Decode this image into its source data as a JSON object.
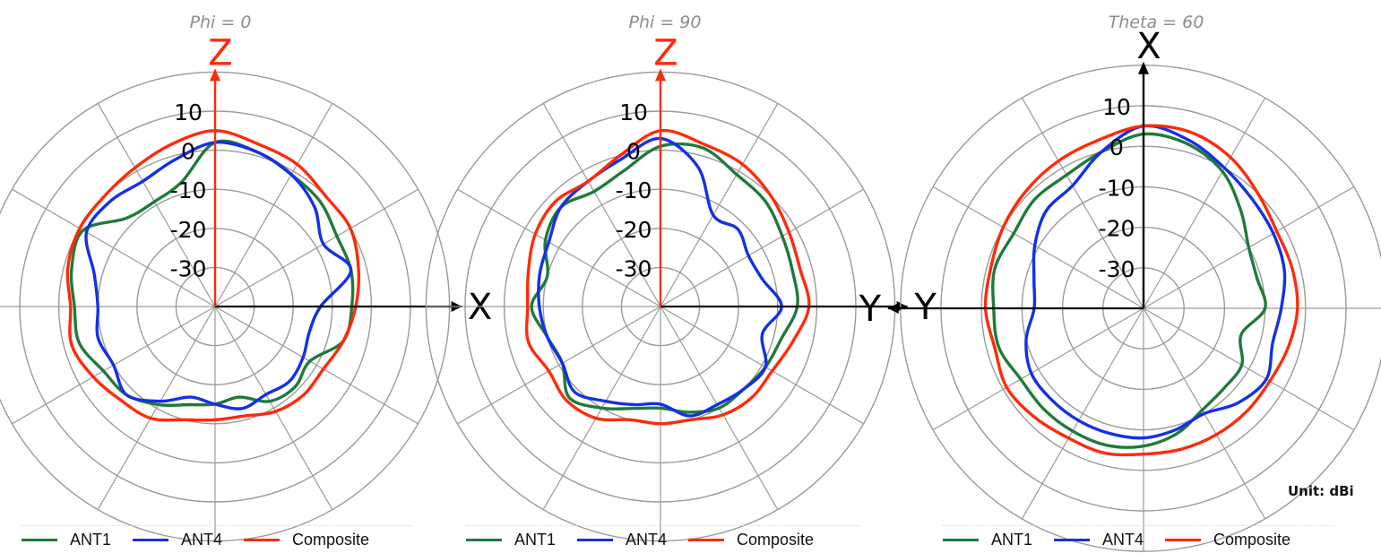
{
  "unit_label": "Unit: dBi",
  "colors": {
    "ANT1": "#1f7a3a",
    "ANT4": "#1430e6",
    "Composite": "#ff2a0a",
    "grid": "#9a9a9a",
    "axis": "#000000",
    "z_axis": "#ff2a0a",
    "title": "#8c8c8c"
  },
  "chart_data": [
    {
      "type": "polar",
      "title": "Phi = 0",
      "radial_ticks": [
        "10",
        "0",
        "-10",
        "-20",
        "-30"
      ],
      "rlim": [
        -40,
        10
      ],
      "grid": true,
      "spoke_step_deg": 30,
      "axis_vertical_label": "Z",
      "axis_horizontal_label": "X",
      "axis_horizontal_direction": "right",
      "angles_deg": [
        0,
        15,
        30,
        45,
        60,
        75,
        90,
        105,
        120,
        135,
        150,
        165,
        180,
        195,
        210,
        225,
        240,
        255,
        270,
        285,
        300,
        315,
        330,
        345
      ],
      "series": [
        {
          "name": "ANT1",
          "values": [
            2,
            1,
            -1,
            -2,
            -4,
            -4,
            -5,
            -6,
            -12,
            -11,
            -12,
            -16,
            -15,
            -14,
            -11,
            -8,
            -7,
            -4,
            -4,
            -2,
            -1,
            -8,
            -9,
            -7
          ]
        },
        {
          "name": "ANT4",
          "values": [
            2,
            1,
            -1,
            -4,
            -8,
            -4,
            -13,
            -15,
            -14,
            -13,
            -14,
            -13,
            -15,
            -16,
            -12,
            -8,
            -10,
            -9,
            -10,
            -8,
            -2,
            -2,
            -3,
            -1
          ]
        },
        {
          "name": "Composite",
          "values": [
            5,
            3,
            2,
            0,
            0,
            -2,
            -4,
            -6,
            -8,
            -8,
            -9,
            -11,
            -11,
            -10,
            -7,
            -6,
            -4,
            -2,
            -3,
            -1,
            0,
            0,
            1,
            3
          ]
        }
      ]
    },
    {
      "type": "polar",
      "title": "Phi = 90",
      "radial_ticks": [
        "10",
        "0",
        "-10",
        "-20",
        "-30"
      ],
      "rlim": [
        -40,
        10
      ],
      "grid": true,
      "spoke_step_deg": 30,
      "axis_vertical_label": "Z",
      "axis_horizontal_label": "Y",
      "axis_horizontal_direction": "right",
      "angles_deg": [
        0,
        15,
        30,
        45,
        60,
        75,
        90,
        105,
        120,
        135,
        150,
        165,
        180,
        195,
        210,
        225,
        240,
        255,
        270,
        285,
        300,
        315,
        330,
        345
      ],
      "series": [
        {
          "name": "ANT1",
          "values": [
            1,
            2,
            -1,
            -2,
            -4,
            -5,
            -5,
            -8,
            -9,
            -10,
            -10,
            -12,
            -14,
            -13,
            -10,
            -7,
            -11,
            -10,
            -7,
            -10,
            -6,
            -4,
            -6,
            -4
          ]
        },
        {
          "name": "ANT4",
          "values": [
            3,
            -3,
            -13,
            -12,
            -14,
            -13,
            -9,
            -13,
            -9,
            -10,
            -11,
            -11,
            -15,
            -14,
            -12,
            -9,
            -11,
            -10,
            -9,
            -8,
            -7,
            -4,
            -3,
            -1
          ]
        },
        {
          "name": "Composite",
          "values": [
            5,
            3,
            2,
            0,
            -2,
            -3,
            -2,
            -5,
            -7,
            -7,
            -8,
            -10,
            -10,
            -10,
            -7,
            -6,
            -7,
            -5,
            -6,
            -5,
            -3,
            -2,
            -3,
            0
          ]
        }
      ]
    },
    {
      "type": "polar",
      "title": "Theta = 60",
      "radial_ticks": [
        "10",
        "0",
        "-10",
        "-20",
        "-30"
      ],
      "rlim": [
        -40,
        10
      ],
      "grid": true,
      "spoke_step_deg": 30,
      "axis_vertical_label": "X",
      "axis_horizontal_label": "Y",
      "axis_horizontal_direction": "left",
      "angles_deg": [
        0,
        15,
        30,
        45,
        60,
        75,
        90,
        105,
        120,
        135,
        150,
        165,
        180,
        195,
        210,
        225,
        240,
        255,
        270,
        285,
        300,
        315,
        330,
        345
      ],
      "series": [
        {
          "name": "ANT1",
          "values": [
            3,
            2,
            -1,
            -6,
            -10,
            -11,
            -10,
            -15,
            -12,
            -12,
            -11,
            -8,
            -6,
            -5,
            -5,
            -5,
            -5,
            -3,
            -3,
            -2,
            -3,
            -2,
            -2,
            0
          ]
        },
        {
          "name": "ANT4",
          "values": [
            5,
            3,
            0,
            -2,
            -3,
            -4,
            -6,
            -7,
            -5,
            -7,
            -10,
            -9,
            -8,
            -8,
            -8,
            -8,
            -8,
            -10,
            -13,
            -12,
            -9,
            -6,
            -5,
            0
          ]
        },
        {
          "name": "Composite",
          "values": [
            5,
            5,
            3,
            0,
            -2,
            -2,
            -2,
            -3,
            -4,
            -4,
            -4,
            -4,
            -4,
            -3,
            -3,
            -2,
            -1,
            -2,
            -1,
            -1,
            0,
            1,
            2,
            3
          ]
        }
      ]
    }
  ]
}
